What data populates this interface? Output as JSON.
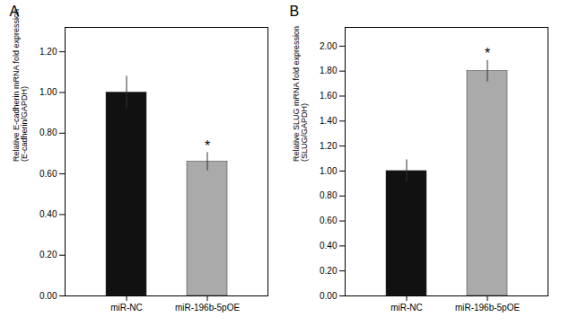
{
  "chart_data": [
    {
      "type": "bar",
      "title": "A",
      "categories": [
        "miR-NC",
        "miR-196b-5pOE"
      ],
      "values": [
        1.0,
        0.66
      ],
      "errors": [
        0.08,
        0.045
      ],
      "colors": [
        "#111111",
        "#aaaaaa"
      ],
      "ylabel": "Relative E-cadherin mRNA fold expression\n(E-cadherin/GAPDH)",
      "ylim": [
        0,
        1.32
      ],
      "yticks": [
        {
          "value": 0.0,
          "label": "0.00"
        },
        {
          "value": 0.2,
          "label": "0.20"
        },
        {
          "value": 0.4,
          "label": "0.40"
        },
        {
          "value": 0.6,
          "label": "0.60"
        },
        {
          "value": 0.8,
          "label": "0.80"
        },
        {
          "value": 1.0,
          "label": "1.00"
        },
        {
          "value": 1.2,
          "label": "1.20"
        }
      ],
      "annotations": [
        {
          "x": "miR-196b-5pOE",
          "text": "*"
        }
      ],
      "grid": false
    },
    {
      "type": "bar",
      "title": "B",
      "categories": [
        "miR-NC",
        "miR-196b-5pOE"
      ],
      "values": [
        1.0,
        1.8
      ],
      "errors": [
        0.09,
        0.085
      ],
      "colors": [
        "#111111",
        "#aaaaaa"
      ],
      "ylabel": "Relative SLUG mRNA fold expression\n(SLUG/GAPDH)",
      "ylim": [
        0,
        2.15
      ],
      "yticks": [
        {
          "value": 0.0,
          "label": "0.00"
        },
        {
          "value": 0.2,
          "label": "0.20"
        },
        {
          "value": 0.4,
          "label": "0.40"
        },
        {
          "value": 0.6,
          "label": "0.60"
        },
        {
          "value": 0.8,
          "label": "0.80"
        },
        {
          "value": 1.0,
          "label": "1.00"
        },
        {
          "value": 1.2,
          "label": "1.20"
        },
        {
          "value": 1.4,
          "label": "1.40"
        },
        {
          "value": 1.6,
          "label": "1.60"
        },
        {
          "value": 1.8,
          "label": "1.80"
        },
        {
          "value": 2.0,
          "label": "2.00"
        }
      ],
      "annotations": [
        {
          "x": "miR-196b-5pOE",
          "text": "*"
        }
      ],
      "grid": false
    }
  ]
}
